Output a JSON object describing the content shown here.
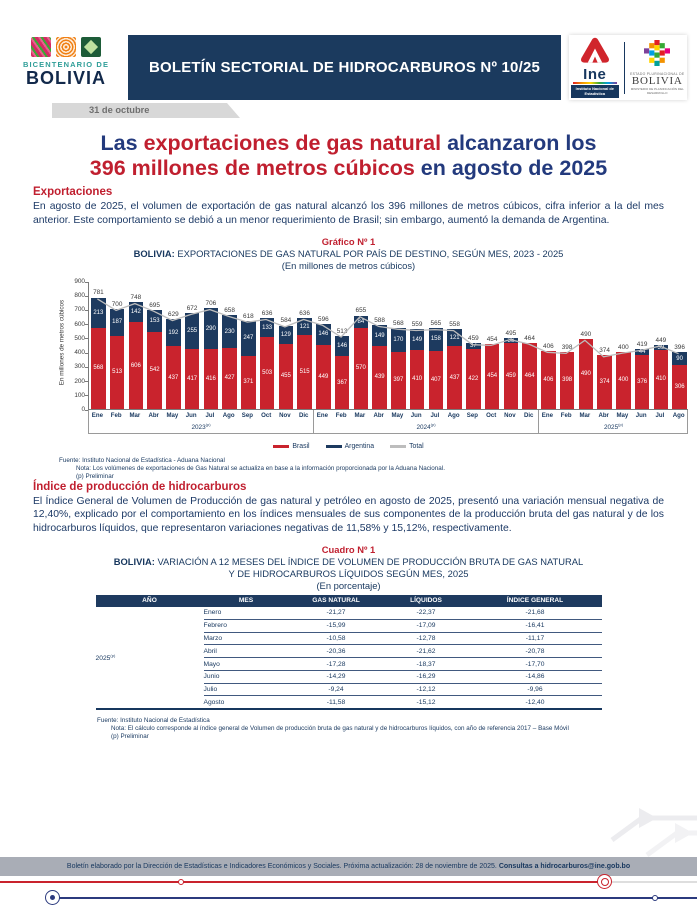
{
  "header": {
    "banner_title": "BOLETÍN SECTORIAL DE HIDROCARBUROS Nº 10/25",
    "date_ribbon": "31 de octubre",
    "bicentenario": {
      "line1": "BICENTENARIO DE",
      "line2": "BOLIVIA"
    },
    "ine": {
      "name": "Ine",
      "subtitle": "Instituto Nacional de Estadística"
    },
    "estado": {
      "line1": "ESTADO PLURINACIONAL DE",
      "line2": "BOLIVIA",
      "line3": "MINISTERIO DE PLANIFICACIÓN DEL DESARROLLO"
    }
  },
  "headline": {
    "l1a": "Las ",
    "l1b": "exportaciones de gas natural",
    "l1c": " alcanzaron los",
    "l2a": "396 millones de metros cúbicos",
    "l2b": " en agosto de 2025"
  },
  "exportaciones": {
    "heading": "Exportaciones",
    "body": "En agosto de 2025, el volumen de exportación de gas natural alcanzó los 396 millones de metros cúbicos, cifra inferior a la del mes anterior. Este comportamiento se debió a un menor requerimiento de Brasil; sin embargo, aumentó la demanda de Argentina."
  },
  "chart": {
    "label": "Gráfico Nº 1",
    "title_bold": "BOLIVIA:",
    "title_rest": " EXPORTACIONES DE GAS NATURAL POR PAÍS DE DESTINO, SEGÚN MES, 2023 - 2025",
    "subtitle": "(En millones de metros cúbicos)",
    "fuente": "Fuente: Instituto Nacional de Estadística - Aduana Nacional",
    "nota": "Nota:  Los volúmenes de exportaciones de Gas Natural se actualiza en base a la información proporcionada por la Aduana Nacional.",
    "preliminar": "(p) Preliminar"
  },
  "chart_data": {
    "type": "bar",
    "stacked": true,
    "title": "BOLIVIA: EXPORTACIONES DE GAS NATURAL POR PAÍS DE DESTINO, SEGÚN MES, 2023 - 2025",
    "ylabel": "En millones de metros cúbicos",
    "ylim": [
      0,
      900
    ],
    "ytick": 100,
    "legend_position": "bottom",
    "categories": [
      "Ene",
      "Feb",
      "Mar",
      "Abr",
      "May",
      "Jun",
      "Jul",
      "Ago",
      "Sep",
      "Oct",
      "Nov",
      "Dic",
      "Ene",
      "Feb",
      "Mar",
      "Abr",
      "May",
      "Jun",
      "Jul",
      "Ago",
      "Sep",
      "Oct",
      "Nov",
      "Dic",
      "Ene",
      "Feb",
      "Mar",
      "Abr",
      "May",
      "Jun",
      "Jul",
      "Ago"
    ],
    "year_groups": [
      {
        "label": "2023",
        "sup": "(p)",
        "span": 12
      },
      {
        "label": "2024",
        "sup": "(p)",
        "span": 12
      },
      {
        "label": "2025",
        "sup": "(p)",
        "span": 8
      }
    ],
    "series": [
      {
        "name": "Brasil",
        "type": "bar",
        "color": "#c9232d",
        "values": [
          568,
          513,
          606,
          542,
          437,
          417,
          416,
          427,
          371,
          503,
          455,
          515,
          449,
          367,
          570,
          439,
          397,
          410,
          407,
          437,
          422,
          454,
          459,
          464,
          406,
          398,
          490,
          374,
          400,
          376,
          410,
          306
        ]
      },
      {
        "name": "Argentina",
        "type": "bar",
        "color": "#1d3a5f",
        "values": [
          213,
          187,
          142,
          153,
          192,
          255,
          290,
          230,
          247,
          133,
          129,
          121,
          146,
          146,
          84,
          149,
          170,
          149,
          158,
          121,
          37,
          0,
          36,
          0,
          0,
          0,
          0,
          0,
          0,
          44,
          39,
          90
        ]
      },
      {
        "name": "Total",
        "type": "line",
        "color": "#bdbdbd",
        "values": [
          781,
          700,
          748,
          695,
          629,
          672,
          706,
          658,
          618,
          636,
          584,
          636,
          596,
          513,
          655,
          588,
          568,
          559,
          565,
          558,
          459,
          454,
          495,
          464,
          406,
          398,
          490,
          374,
          400,
          419,
          449,
          396
        ]
      }
    ]
  },
  "indice": {
    "heading": "Índice de producción de hidrocarburos",
    "body": "El Índice General de Volumen de Producción de gas natural y petróleo en agosto de 2025, presentó una variación mensual negativa de 12,40%, explicado por el comportamiento en los índices mensuales de sus componentes de la producción bruta del gas natural y de los hidrocarburos líquidos, que representaron variaciones negativas de 11,58% y 15,12%, respectivamente."
  },
  "cuadro": {
    "label": "Cuadro Nº 1",
    "title_bold": "BOLIVIA:",
    "title_l1rest": " VARIACIÓN A 12 MESES DEL ÍNDICE DE VOLUMEN DE PRODUCCIÓN BRUTA DE GAS NATURAL",
    "title_l2": "Y DE HIDROCARBUROS LÍQUIDOS SEGÚN MES, 2025",
    "subtitle": "(En porcentaje)",
    "table": {
      "headers": [
        "AÑO",
        "MES",
        "GAS NATURAL",
        "LÍQUIDOS",
        "ÍNDICE GENERAL"
      ],
      "year": "2025",
      "year_sup": "(p)",
      "rows": [
        [
          "Enero",
          "-21,27",
          "-22,37",
          "-21,68"
        ],
        [
          "Febrero",
          "-15,99",
          "-17,09",
          "-16,41"
        ],
        [
          "Marzo",
          "-10,58",
          "-12,78",
          "-11,17"
        ],
        [
          "Abril",
          "-20,36",
          "-21,62",
          "-20,78"
        ],
        [
          "Mayo",
          "-17,28",
          "-18,37",
          "-17,70"
        ],
        [
          "Junio",
          "-14,29",
          "-16,29",
          "-14,86"
        ],
        [
          "Julio",
          "-9,24",
          "-12,12",
          "-9,96"
        ],
        [
          "Agosto",
          "-11,58",
          "-15,12",
          "-12,40"
        ]
      ]
    },
    "fuente": "Fuente: Instituto Nacional de Estadística",
    "nota": "Nota: El cálculo corresponde  al índice general de Volumen de producción bruta de gas natural y de hidrocarburos líquidos, con año de referencia 2017 – Base Móvil",
    "preliminar": "(p) Preliminar"
  },
  "footer": {
    "text": "Boletín elaborado por la Dirección de Estadísticas e Indicadores Económicos y Sociales. Próxima actualización: 28 de noviembre de 2025. ",
    "contact": "Consultas a hidrocarburos@ine.gob.bo"
  },
  "colors": {
    "navy": "#1b3a5e",
    "red": "#c9232d",
    "headline_blue": "#233a7d",
    "total_line": "#bdbdbd",
    "footer_gray": "#a9adb6"
  }
}
